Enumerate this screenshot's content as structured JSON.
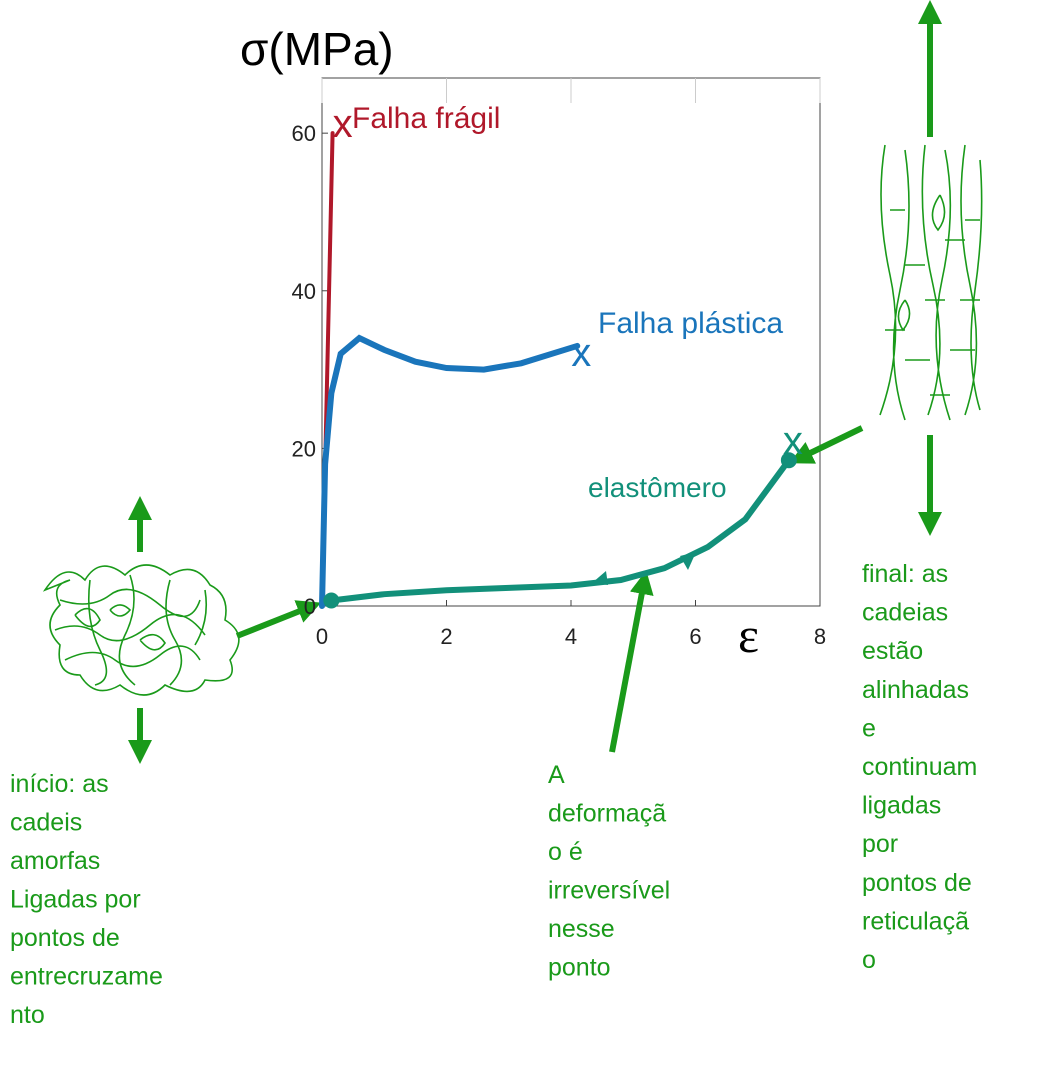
{
  "chart_data": {
    "type": "line",
    "y_label": "σ(MPa)",
    "x_label": "ε",
    "xlim": [
      0,
      8
    ],
    "ylim": [
      0,
      67
    ],
    "xticks": [
      0,
      2,
      4,
      6,
      8
    ],
    "yticks": [
      0,
      20,
      40,
      60
    ],
    "grid": false,
    "series": [
      {
        "name": "Falha frágil",
        "marker": "x",
        "color": "#b0182a",
        "x": [
          0,
          0.17
        ],
        "values": [
          0,
          60
        ]
      },
      {
        "name": "Falha plástica",
        "marker": "x",
        "color": "#1a75bb",
        "x": [
          0,
          0.05,
          0.15,
          0.3,
          0.6,
          1,
          1.5,
          2,
          2.6,
          3.2,
          4.1
        ],
        "values": [
          0,
          18,
          27,
          32,
          34,
          32.5,
          31,
          30.2,
          30,
          30.8,
          33
        ]
      },
      {
        "name": "elastômero",
        "marker": "x",
        "color": "#12907a",
        "x": [
          0.15,
          1,
          2,
          3,
          4,
          4.8,
          5.5,
          6.2,
          6.8,
          7.5
        ],
        "values": [
          0.7,
          1.5,
          2,
          2.3,
          2.6,
          3.3,
          4.8,
          7.5,
          11,
          18.5
        ]
      }
    ],
    "annotations": [
      {
        "lines": [
          "início:  as",
          "cadeis",
          "amorfas",
          "Ligadas por",
          "pontos de",
          "entrecruzame",
          "nto"
        ]
      },
      {
        "lines": [
          "A",
          "deformaçã",
          "o é",
          "irreversível",
          "nesse",
          "ponto"
        ]
      },
      {
        "lines": [
          "final: as",
          "cadeias",
          "estão",
          "alinhadas",
          "e",
          "continuam",
          "ligadas",
          "por",
          "pontos de",
          "reticulaçã",
          "o"
        ]
      }
    ]
  }
}
